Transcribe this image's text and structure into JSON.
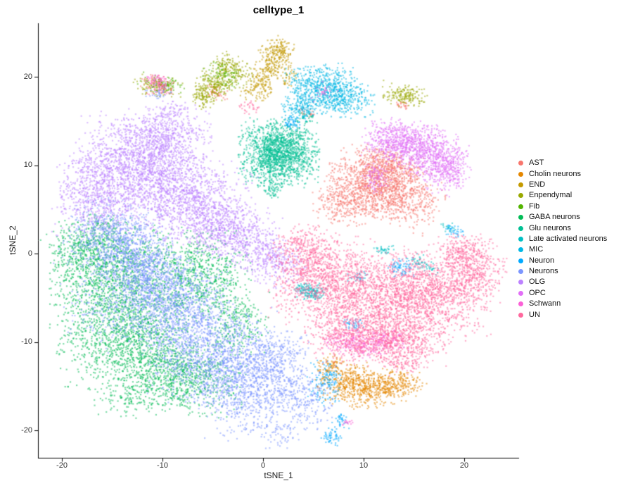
{
  "chart_data": {
    "type": "scatter",
    "title": "celltype_1",
    "xlabel": "tSNE_1",
    "ylabel": "tSNE_2",
    "x_ticks": [
      "-20",
      "-10",
      "0",
      "10",
      "20"
    ],
    "y_ticks": [
      "20",
      "10",
      "0",
      "-10",
      "-20"
    ],
    "x_tick_values": [
      -20,
      -10,
      0,
      10,
      20
    ],
    "y_tick_values": [
      20,
      10,
      0,
      -10,
      -20
    ],
    "x_range": [
      -22.4,
      25.4
    ],
    "y_range": [
      -23.1,
      25.9
    ],
    "grid": "off",
    "legend_position": "right",
    "point_alpha": 0.5,
    "cluster_format": [
      "center_x",
      "center_y",
      "sigma_x",
      "sigma_y",
      "n_points",
      "rotation_deg"
    ],
    "series": [
      {
        "name": "AST",
        "color": "#F8766D",
        "clusters": [
          [
            10.5,
            8.2,
            2.0,
            1.7,
            700,
            -20
          ],
          [
            13.8,
            6.6,
            2.0,
            1.6,
            600,
            -25
          ],
          [
            8.2,
            5.8,
            1.5,
            1.3,
            300,
            0
          ],
          [
            12.5,
            10.0,
            1.5,
            1.0,
            300,
            -15
          ],
          [
            -10.5,
            19.3,
            0.8,
            0.45,
            55,
            -10
          ],
          [
            -4.6,
            18.2,
            0.7,
            0.4,
            45,
            -30
          ],
          [
            13.9,
            16.8,
            0.45,
            0.3,
            25,
            0
          ],
          [
            4.3,
            15.8,
            0.45,
            0.35,
            25,
            0
          ]
        ]
      },
      {
        "name": "Cholin neurons",
        "color": "#E58700",
        "clusters": [
          [
            8.3,
            -14.6,
            1.4,
            1.0,
            300,
            25
          ],
          [
            10.9,
            -15.3,
            1.6,
            1.0,
            330,
            10
          ],
          [
            13.2,
            -14.7,
            1.4,
            0.7,
            200,
            0
          ],
          [
            6.7,
            -12.7,
            0.75,
            0.55,
            90,
            30
          ]
        ]
      },
      {
        "name": "END",
        "color": "#C49A00",
        "clusters": [
          [
            1.3,
            22.3,
            0.85,
            1.05,
            170,
            -30
          ],
          [
            0.3,
            20.3,
            0.75,
            0.95,
            130,
            -35
          ],
          [
            -0.5,
            18.6,
            0.65,
            0.75,
            80,
            -35
          ],
          [
            1.9,
            23.2,
            0.55,
            0.5,
            40,
            0
          ],
          [
            2.6,
            19.8,
            0.5,
            0.85,
            40,
            0
          ]
        ]
      },
      {
        "name": "Enpendymal",
        "color": "#99A800",
        "clusters": [
          [
            -3.2,
            20.6,
            1.05,
            0.85,
            210,
            -35
          ],
          [
            -4.8,
            19.0,
            0.95,
            0.75,
            170,
            -35
          ],
          [
            -6.1,
            17.7,
            0.8,
            0.65,
            100,
            -35
          ],
          [
            14.0,
            17.9,
            1.05,
            0.6,
            170,
            -10
          ],
          [
            -10.3,
            18.9,
            1.2,
            0.55,
            110,
            -10
          ]
        ]
      },
      {
        "name": "Fib",
        "color": "#53B400",
        "clusters": [
          [
            -10.0,
            19.2,
            1.1,
            0.5,
            75,
            -10
          ],
          [
            -3.9,
            20.3,
            0.95,
            0.65,
            65,
            -35
          ]
        ]
      },
      {
        "name": "GABA neurons",
        "color": "#00BC56",
        "clusters": [
          [
            -15.0,
            -2.5,
            2.9,
            3.0,
            1150,
            0
          ],
          [
            -13.5,
            -9.5,
            3.2,
            2.9,
            1250,
            0
          ],
          [
            -8.0,
            -13.8,
            2.9,
            2.1,
            850,
            -10
          ],
          [
            -6.5,
            -2.5,
            2.5,
            2.5,
            780,
            0
          ],
          [
            -17.5,
            1.0,
            1.9,
            1.7,
            380,
            20
          ],
          [
            -2.6,
            -8.0,
            1.5,
            1.7,
            240,
            0
          ],
          [
            -13.0,
            -16.3,
            2.1,
            1.1,
            140,
            10
          ]
        ]
      },
      {
        "name": "Glu neurons",
        "color": "#00C094",
        "clusters": [
          [
            1.6,
            11.4,
            1.85,
            1.8,
            1650,
            0
          ],
          [
            1.0,
            7.2,
            0.5,
            0.45,
            50,
            0
          ],
          [
            4.2,
            15.3,
            0.4,
            0.35,
            30,
            0
          ]
        ]
      },
      {
        "name": "Late activated neurons",
        "color": "#00BFC4",
        "clusters": [
          [
            4.7,
            -4.3,
            0.75,
            0.5,
            170,
            -10
          ],
          [
            18.5,
            3.0,
            0.5,
            0.3,
            20,
            -40
          ],
          [
            16.0,
            -1.2,
            0.85,
            0.4,
            55,
            -30
          ],
          [
            12.1,
            0.4,
            0.5,
            0.3,
            35,
            0
          ]
        ]
      },
      {
        "name": "MIC",
        "color": "#00B8E5",
        "clusters": [
          [
            5.8,
            18.6,
            1.8,
            1.35,
            640,
            0
          ],
          [
            8.4,
            17.6,
            1.25,
            1.05,
            240,
            0
          ],
          [
            3.6,
            16.4,
            0.85,
            0.8,
            120,
            0
          ],
          [
            9.6,
            -2.6,
            0.55,
            0.4,
            30,
            0
          ]
        ]
      },
      {
        "name": "Neuron",
        "color": "#00A9FF",
        "clusters": [
          [
            6.2,
            -14.6,
            0.85,
            1.3,
            140,
            0
          ],
          [
            6.8,
            -20.7,
            0.5,
            0.5,
            55,
            0
          ],
          [
            7.7,
            -18.9,
            0.4,
            0.4,
            35,
            0
          ],
          [
            13.8,
            -1.6,
            0.75,
            0.55,
            75,
            0
          ],
          [
            9.0,
            -8.1,
            0.55,
            0.4,
            40,
            0
          ],
          [
            2.9,
            14.7,
            0.45,
            0.4,
            45,
            0
          ],
          [
            18.9,
            2.6,
            0.6,
            0.35,
            35,
            -40
          ]
        ]
      },
      {
        "name": "Neurons",
        "color": "#7C96FF",
        "clusters": [
          [
            -14.5,
            1.5,
            2.5,
            2.1,
            850,
            -15
          ],
          [
            -9.5,
            -5.5,
            3.1,
            2.7,
            1300,
            0
          ],
          [
            -5.0,
            -11.5,
            3.1,
            2.5,
            1200,
            0
          ],
          [
            -1.6,
            -15.5,
            2.5,
            2.4,
            800,
            15
          ],
          [
            -12.0,
            -2.0,
            2.1,
            1.9,
            480,
            0
          ],
          [
            1.5,
            -12.0,
            1.5,
            1.7,
            280,
            0
          ],
          [
            4.4,
            -16.4,
            1.3,
            1.7,
            190,
            0
          ],
          [
            -17.0,
            -6.0,
            1.5,
            1.7,
            100,
            0
          ],
          [
            -10.3,
            18.3,
            0.65,
            0.45,
            45,
            0
          ],
          [
            1.8,
            -20.5,
            0.9,
            0.8,
            50,
            0
          ]
        ]
      },
      {
        "name": "OLG",
        "color": "#BC81FF",
        "clusters": [
          [
            -12.5,
            10.0,
            3.1,
            2.5,
            1300,
            -10
          ],
          [
            -7.5,
            6.0,
            2.9,
            2.5,
            1150,
            -15
          ],
          [
            -16.5,
            6.5,
            2.1,
            2.1,
            580,
            0
          ],
          [
            -3.0,
            2.5,
            2.1,
            1.7,
            580,
            -20
          ],
          [
            -10.0,
            13.5,
            2.3,
            1.5,
            480,
            0
          ],
          [
            0.8,
            -0.8,
            1.7,
            1.35,
            330,
            -20
          ],
          [
            -9.2,
            16.2,
            0.95,
            0.55,
            60,
            0
          ]
        ]
      },
      {
        "name": "OPC",
        "color": "#E26EF7",
        "clusters": [
          [
            13.0,
            12.8,
            1.5,
            1.15,
            430,
            -10
          ],
          [
            16.3,
            11.5,
            1.9,
            1.5,
            680,
            -15
          ],
          [
            18.4,
            9.2,
            1.15,
            1.3,
            240,
            0
          ],
          [
            11.3,
            8.6,
            0.65,
            0.85,
            90,
            0
          ]
        ]
      },
      {
        "name": "Schwann",
        "color": "#FB61D7",
        "clusters": [
          [
            9.5,
            -10.2,
            1.6,
            0.75,
            270,
            -5
          ],
          [
            12.5,
            -9.7,
            0.95,
            0.55,
            100,
            0
          ],
          [
            -10.6,
            19.6,
            0.55,
            0.35,
            45,
            0
          ],
          [
            6.1,
            18.3,
            0.75,
            0.55,
            25,
            0
          ],
          [
            8.6,
            -19.1,
            0.4,
            0.3,
            15,
            0
          ]
        ]
      },
      {
        "name": "UN",
        "color": "#FF689E",
        "clusters": [
          [
            6.0,
            -3.0,
            2.5,
            2.5,
            980,
            0
          ],
          [
            11.5,
            -5.5,
            2.9,
            2.7,
            1280,
            0
          ],
          [
            17.0,
            -4.5,
            2.7,
            2.5,
            1080,
            0
          ],
          [
            21.0,
            -2.0,
            1.5,
            1.7,
            380,
            0
          ],
          [
            9.0,
            -9.5,
            2.3,
            1.5,
            480,
            0
          ],
          [
            14.0,
            -10.2,
            2.1,
            1.3,
            380,
            0
          ],
          [
            4.0,
            0.5,
            1.35,
            1.35,
            240,
            0
          ],
          [
            19.8,
            0.3,
            1.3,
            0.9,
            190,
            0
          ],
          [
            -10.1,
            18.7,
            0.65,
            0.45,
            55,
            0
          ],
          [
            13.6,
            -12.4,
            1.2,
            0.75,
            90,
            0
          ],
          [
            -1.3,
            16.5,
            0.55,
            0.4,
            30,
            0
          ]
        ]
      }
    ]
  }
}
